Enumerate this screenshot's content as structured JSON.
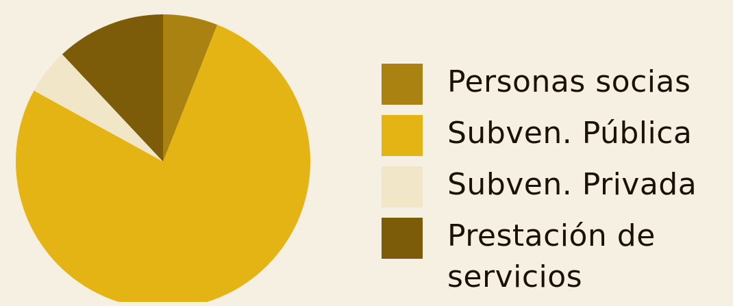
{
  "chart_data": {
    "type": "pie",
    "categories": [
      "Personas socias",
      "Subven. Pública",
      "Subven. Privada",
      "Prestación de servicios"
    ],
    "values": [
      6,
      77,
      5,
      12
    ],
    "colors": [
      "#a98212",
      "#e4b414",
      "#f2e6c8",
      "#7c5c08"
    ],
    "legend_position": "right"
  },
  "legend": {
    "items": [
      {
        "label": "Personas socias",
        "color": "#a98212"
      },
      {
        "label": "Subven. Pública",
        "color": "#e4b414"
      },
      {
        "label": "Subven. Privada",
        "color": "#f2e6c8"
      },
      {
        "label": "Prestación de servicios",
        "color": "#7c5c08"
      }
    ]
  }
}
